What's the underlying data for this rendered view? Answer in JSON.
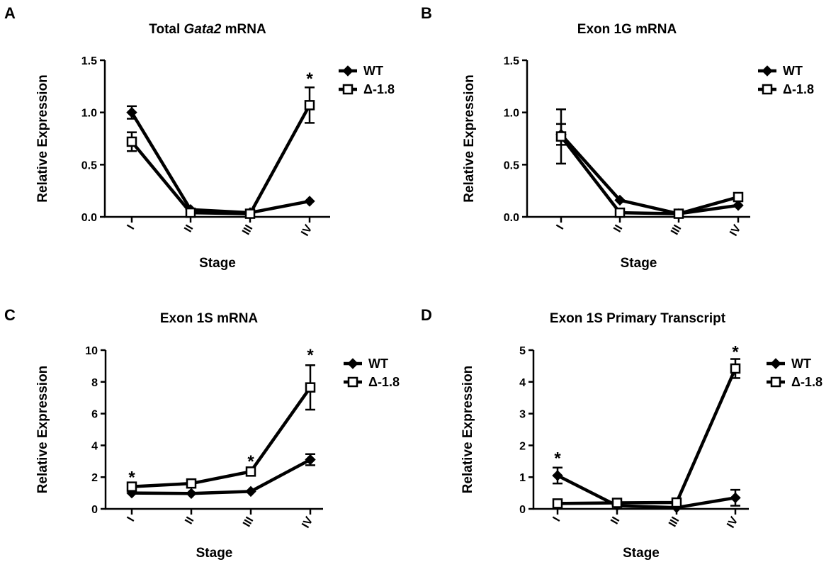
{
  "chart_data": [
    {
      "panel": "A",
      "type": "line",
      "title": "Total Gata2 mRNA",
      "title_parts": [
        {
          "text": "Total ",
          "italic": false
        },
        {
          "text": "Gata2",
          "italic": true
        },
        {
          "text": " mRNA",
          "italic": false
        }
      ],
      "xlabel": "Stage",
      "ylabel": "Relative Expression",
      "categories": [
        "I",
        "II",
        "III",
        "IV"
      ],
      "ylim": [
        0,
        1.5
      ],
      "yticks": [
        0.0,
        0.5,
        1.0,
        1.5
      ],
      "ytick_labels": [
        "0.0",
        "0.5",
        "1.0",
        "1.5"
      ],
      "legend": "top-right",
      "series": [
        {
          "name": "WT",
          "marker": "diamond",
          "values": [
            1.0,
            0.07,
            0.04,
            0.15
          ],
          "errors": [
            0.06,
            0,
            0,
            0
          ]
        },
        {
          "name": "Δ-1.8",
          "marker": "square-open",
          "values": [
            0.72,
            0.04,
            0.03,
            1.07
          ],
          "errors": [
            0.09,
            0,
            0,
            0.17
          ]
        }
      ],
      "annotations": [
        {
          "category": "IV",
          "text": "*",
          "y": 1.37
        }
      ]
    },
    {
      "panel": "B",
      "type": "line",
      "title": "Exon 1G mRNA",
      "title_parts": [
        {
          "text": "Exon 1G mRNA",
          "italic": false
        }
      ],
      "xlabel": "Stage",
      "ylabel": "Relative Expression",
      "categories": [
        "I",
        "II",
        "III",
        "IV"
      ],
      "ylim": [
        0,
        1.5
      ],
      "yticks": [
        0.0,
        0.5,
        1.0,
        1.5
      ],
      "ytick_labels": [
        "0.0",
        "0.5",
        "1.0",
        "1.5"
      ],
      "legend": "top-right",
      "series": [
        {
          "name": "WT",
          "marker": "diamond",
          "values": [
            0.79,
            0.16,
            0.03,
            0.11
          ],
          "errors": [
            0.1,
            0,
            0,
            0
          ]
        },
        {
          "name": "Δ-1.8",
          "marker": "square-open",
          "values": [
            0.77,
            0.04,
            0.03,
            0.19
          ],
          "errors": [
            0.26,
            0,
            0,
            0
          ]
        }
      ],
      "annotations": []
    },
    {
      "panel": "C",
      "type": "line",
      "title": "Exon 1S mRNA",
      "title_parts": [
        {
          "text": "Exon 1S mRNA",
          "italic": false
        }
      ],
      "xlabel": "Stage",
      "ylabel": "Relative Expression",
      "categories": [
        "I",
        "II",
        "III",
        "IV"
      ],
      "ylim": [
        0,
        10
      ],
      "yticks": [
        0,
        2,
        4,
        6,
        8,
        10
      ],
      "ytick_labels": [
        "0",
        "2",
        "4",
        "6",
        "8",
        "10"
      ],
      "legend": "top-right",
      "series": [
        {
          "name": "WT",
          "marker": "diamond",
          "values": [
            1.0,
            0.97,
            1.1,
            3.1
          ],
          "errors": [
            0,
            0,
            0,
            0.35
          ]
        },
        {
          "name": "Δ-1.8",
          "marker": "square-open",
          "values": [
            1.4,
            1.6,
            2.35,
            7.65
          ],
          "errors": [
            0.15,
            0,
            0.2,
            1.4
          ]
        }
      ],
      "annotations": [
        {
          "category": "I",
          "text": "*",
          "y": 2.3
        },
        {
          "category": "III",
          "text": "*",
          "y": 3.3
        },
        {
          "category": "IV",
          "text": "*",
          "y": 10.0
        }
      ]
    },
    {
      "panel": "D",
      "type": "line",
      "title": "Exon 1S Primary Transcript",
      "title_parts": [
        {
          "text": "Exon 1S Primary Transcript",
          "italic": false
        }
      ],
      "xlabel": "Stage",
      "ylabel": "Relative Expression",
      "categories": [
        "I",
        "II",
        "III",
        "IV"
      ],
      "ylim": [
        0,
        5
      ],
      "yticks": [
        0,
        1,
        2,
        3,
        4,
        5
      ],
      "ytick_labels": [
        "0",
        "1",
        "2",
        "3",
        "4",
        "5"
      ],
      "legend": "top-right",
      "series": [
        {
          "name": "WT",
          "marker": "diamond",
          "values": [
            1.05,
            0.1,
            0.04,
            0.35
          ],
          "errors": [
            0.25,
            0,
            0,
            0.25
          ]
        },
        {
          "name": "Δ-1.8",
          "marker": "square-open",
          "values": [
            0.17,
            0.19,
            0.2,
            4.42
          ],
          "errors": [
            0,
            0,
            0,
            0.3
          ]
        }
      ],
      "annotations": [
        {
          "category": "I",
          "text": "*",
          "y": 1.75
        },
        {
          "category": "IV",
          "text": "*",
          "y": 5.1
        }
      ]
    }
  ]
}
